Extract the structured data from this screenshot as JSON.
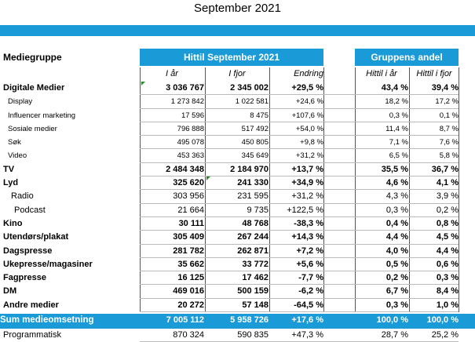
{
  "title": "September 2021",
  "header": {
    "mediegruppe": "Mediegruppe",
    "group1": "Hittil September 2021",
    "group2": "Gruppens andel",
    "col_iaar": "I år",
    "col_ifjor": "I fjor",
    "col_endring": "Endring",
    "col_andel_iaar": "Hittil i år",
    "col_andel_ifjor": "Hittil i fjor"
  },
  "colors": {
    "accent": "#1a9ad6"
  },
  "rows": [
    {
      "name": "Digitale Medier",
      "iaar": "3 036 767",
      "ifjor": "2 345 002",
      "endring": "+29,5 %",
      "a1": "43,4 %",
      "a2": "39,4 %"
    },
    {
      "name": "Display",
      "iaar": "1 273 842",
      "ifjor": "1 022 581",
      "endring": "+24,6 %",
      "a1": "18,2 %",
      "a2": "17,2 %"
    },
    {
      "name": "Influencer marketing",
      "iaar": "17 596",
      "ifjor": "8 475",
      "endring": "+107,6 %",
      "a1": "0,3 %",
      "a2": "0,1 %"
    },
    {
      "name": "Sosiale medier",
      "iaar": "796 888",
      "ifjor": "517 492",
      "endring": "+54,0 %",
      "a1": "11,4 %",
      "a2": "8,7 %"
    },
    {
      "name": "Søk",
      "iaar": "495 078",
      "ifjor": "450 805",
      "endring": "+9,8 %",
      "a1": "7,1 %",
      "a2": "7,6 %"
    },
    {
      "name": "Video",
      "iaar": "453 363",
      "ifjor": "345 649",
      "endring": "+31,2 %",
      "a1": "6,5 %",
      "a2": "5,8 %"
    },
    {
      "name": "TV",
      "iaar": "2 484 348",
      "ifjor": "2 184 970",
      "endring": "+13,7 %",
      "a1": "35,5 %",
      "a2": "36,7 %"
    },
    {
      "name": "Lyd",
      "iaar": "325 620",
      "ifjor": "241 330",
      "endring": "+34,9 %",
      "a1": "4,6 %",
      "a2": "4,1 %"
    },
    {
      "name": "Radio",
      "iaar": "303 956",
      "ifjor": "231 595",
      "endring": "+31,2 %",
      "a1": "4,3 %",
      "a2": "3,9 %"
    },
    {
      "name": "Podcast",
      "iaar": "21 664",
      "ifjor": "9 735",
      "endring": "+122,5 %",
      "a1": "0,3 %",
      "a2": "0,2 %"
    },
    {
      "name": "Kino",
      "iaar": "30 111",
      "ifjor": "48 768",
      "endring": "-38,3 %",
      "a1": "0,4 %",
      "a2": "0,8 %"
    },
    {
      "name": "Utendørs/plakat",
      "iaar": "305 409",
      "ifjor": "267 244",
      "endring": "+14,3 %",
      "a1": "4,4 %",
      "a2": "4,5 %"
    },
    {
      "name": "Dagspresse",
      "iaar": "281 782",
      "ifjor": "262 871",
      "endring": "+7,2 %",
      "a1": "4,0 %",
      "a2": "4,4 %"
    },
    {
      "name": "Ukepresse/magasiner",
      "iaar": "35 662",
      "ifjor": "33 772",
      "endring": "+5,6 %",
      "a1": "0,5 %",
      "a2": "0,6 %"
    },
    {
      "name": "Fagpresse",
      "iaar": "16 125",
      "ifjor": "17 462",
      "endring": "-7,7 %",
      "a1": "0,2 %",
      "a2": "0,3 %"
    },
    {
      "name": "DM",
      "iaar": "469 016",
      "ifjor": "500 159",
      "endring": "-6,2 %",
      "a1": "6,7 %",
      "a2": "8,4 %"
    },
    {
      "name": "Andre medier",
      "iaar": "20 272",
      "ifjor": "57 148",
      "endring": "-64,5 %",
      "a1": "0,3 %",
      "a2": "1,0 %"
    },
    {
      "name": "Sum medieomsetning",
      "iaar": "7 005 112",
      "ifjor": "5 958 726",
      "endring": "+17,6 %",
      "a1": "100,0 %",
      "a2": "100,0 %"
    },
    {
      "name": "Programmatisk",
      "iaar": "870 324",
      "ifjor": "590 835",
      "endring": "+47,3 %",
      "a1": "28,7 %",
      "a2": "25,2 %"
    }
  ]
}
